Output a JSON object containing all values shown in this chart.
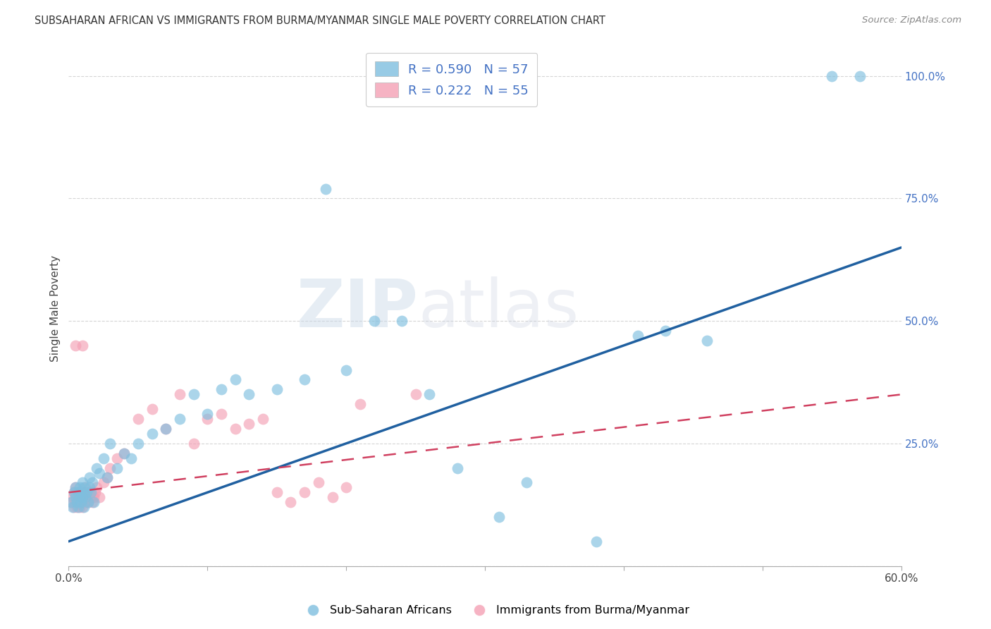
{
  "title": "SUBSAHARAN AFRICAN VS IMMIGRANTS FROM BURMA/MYANMAR SINGLE MALE POVERTY CORRELATION CHART",
  "source": "Source: ZipAtlas.com",
  "ylabel": "Single Male Poverty",
  "xlim": [
    0.0,
    0.6
  ],
  "ylim": [
    0.0,
    1.05
  ],
  "xticks": [
    0.0,
    0.1,
    0.2,
    0.3,
    0.4,
    0.5,
    0.6
  ],
  "xticklabels": [
    "0.0%",
    "",
    "",
    "",
    "",
    "",
    "60.0%"
  ],
  "yticks": [
    0.0,
    0.25,
    0.5,
    0.75,
    1.0
  ],
  "yticklabels": [
    "",
    "25.0%",
    "50.0%",
    "75.0%",
    "100.0%"
  ],
  "legend1_label": "R = 0.590   N = 57",
  "legend2_label": "R = 0.222   N = 55",
  "legend_bottom1": "Sub-Saharan Africans",
  "legend_bottom2": "Immigrants from Burma/Myanmar",
  "blue_color": "#7fbfdf",
  "pink_color": "#f4a0b5",
  "blue_line_color": "#2060a0",
  "pink_line_color": "#d04060",
  "watermark_zip": "ZIP",
  "watermark_atlas": "atlas",
  "background_color": "#ffffff",
  "grid_color": "#cccccc",
  "blue_x": [
    0.002,
    0.003,
    0.004,
    0.005,
    0.005,
    0.006,
    0.007,
    0.007,
    0.008,
    0.008,
    0.009,
    0.009,
    0.01,
    0.01,
    0.011,
    0.011,
    0.012,
    0.013,
    0.014,
    0.015,
    0.015,
    0.016,
    0.017,
    0.018,
    0.02,
    0.022,
    0.025,
    0.028,
    0.03,
    0.035,
    0.04,
    0.045,
    0.05,
    0.06,
    0.07,
    0.08,
    0.09,
    0.1,
    0.11,
    0.12,
    0.13,
    0.15,
    0.17,
    0.185,
    0.2,
    0.22,
    0.24,
    0.26,
    0.28,
    0.31,
    0.33,
    0.41,
    0.43,
    0.46,
    0.55,
    0.57,
    0.38
  ],
  "blue_y": [
    0.13,
    0.12,
    0.15,
    0.14,
    0.16,
    0.13,
    0.15,
    0.12,
    0.14,
    0.16,
    0.13,
    0.15,
    0.14,
    0.17,
    0.12,
    0.16,
    0.14,
    0.15,
    0.13,
    0.16,
    0.18,
    0.15,
    0.17,
    0.13,
    0.2,
    0.19,
    0.22,
    0.18,
    0.25,
    0.2,
    0.23,
    0.22,
    0.25,
    0.27,
    0.28,
    0.3,
    0.35,
    0.31,
    0.36,
    0.38,
    0.35,
    0.36,
    0.38,
    0.77,
    0.4,
    0.5,
    0.5,
    0.35,
    0.2,
    0.1,
    0.17,
    0.47,
    0.48,
    0.46,
    1.0,
    1.0,
    0.05
  ],
  "pink_x": [
    0.002,
    0.003,
    0.004,
    0.004,
    0.005,
    0.005,
    0.006,
    0.006,
    0.007,
    0.007,
    0.008,
    0.008,
    0.009,
    0.009,
    0.01,
    0.01,
    0.011,
    0.011,
    0.012,
    0.012,
    0.013,
    0.013,
    0.014,
    0.015,
    0.016,
    0.017,
    0.018,
    0.019,
    0.02,
    0.022,
    0.025,
    0.028,
    0.03,
    0.035,
    0.04,
    0.05,
    0.06,
    0.07,
    0.08,
    0.09,
    0.1,
    0.11,
    0.12,
    0.13,
    0.14,
    0.15,
    0.16,
    0.17,
    0.18,
    0.19,
    0.2,
    0.21,
    0.25,
    0.01,
    0.005
  ],
  "pink_y": [
    0.13,
    0.14,
    0.15,
    0.12,
    0.13,
    0.16,
    0.14,
    0.12,
    0.15,
    0.13,
    0.14,
    0.12,
    0.15,
    0.13,
    0.14,
    0.12,
    0.15,
    0.14,
    0.13,
    0.16,
    0.15,
    0.14,
    0.13,
    0.15,
    0.14,
    0.13,
    0.14,
    0.15,
    0.16,
    0.14,
    0.17,
    0.18,
    0.2,
    0.22,
    0.23,
    0.3,
    0.32,
    0.28,
    0.35,
    0.25,
    0.3,
    0.31,
    0.28,
    0.29,
    0.3,
    0.15,
    0.13,
    0.15,
    0.17,
    0.14,
    0.16,
    0.33,
    0.35,
    0.45,
    0.45
  ]
}
